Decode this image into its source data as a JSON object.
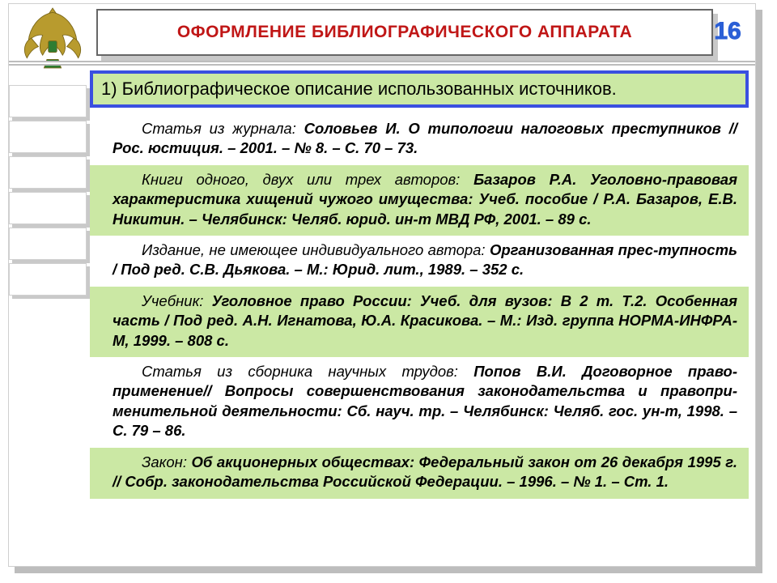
{
  "colors": {
    "accent_red": "#c01616",
    "accent_blue": "#2b5fd6",
    "box_border_blue": "#3a4fe0",
    "highlight_green": "#cbe8a4",
    "shadow_gray": "#bdbdbd",
    "white": "#ffffff"
  },
  "header": {
    "title": "ОФОРМЛЕНИЕ БИБЛИОГРАФИЧЕСКОГО АППАРАТА",
    "page_number": "16",
    "emblem_label": "emblem-eagle"
  },
  "subtitle": "1)  Библиографическое описание использованных источников.",
  "entries": [
    {
      "bg": "white",
      "kind": "Статья из журнала:",
      "body": "Соловьев И. О типологии налоговых преступников // Рос. юстиция. – 2001. – № 8. – С. 70 – 73."
    },
    {
      "bg": "green",
      "kind": "Книги одного, двух или трех авторов:",
      "body": "Базаров Р.А. Уголовно-правовая характеристика хищений чужого имущества: Учеб. пособие / Р.А. Базаров, Е.В. Никитин. – Челябинск: Челяб. юрид. ин-т МВД РФ, 2001. – 89 с."
    },
    {
      "bg": "white",
      "kind": "Издание, не имеющее индивидуального автора:",
      "body": "Организованная прес-тупность / Под ред. С.В. Дьякова. – М.: Юрид. лит., 1989. – 352 с."
    },
    {
      "bg": "green",
      "kind": "Учебник:",
      "body": "Уголовное право России: Учеб. для вузов: В 2 т. Т.2. Особенная часть / Под ред. А.Н. Игнатова, Ю.А. Красикова. – М.: Изд. группа НОРМА-ИНФРА-М, 1999. – 808 с."
    },
    {
      "bg": "white",
      "kind": "Статья из сборника научных трудов:",
      "body": "Попов В.И. Договорное право-применение// Вопросы совершенствования законодательства и правопри-менительной деятельности: Сб. науч. тр. – Челябинск: Челяб. гос. ун-т, 1998. – С. 79 – 86."
    },
    {
      "bg": "green",
      "kind": "Закон:",
      "body": "Об акционерных обществах: Федеральный закон от 26 декабря 1995 г. // Собр. законодательства Российской Федерации. – 1996. – № 1. – Ст. 1."
    }
  ]
}
